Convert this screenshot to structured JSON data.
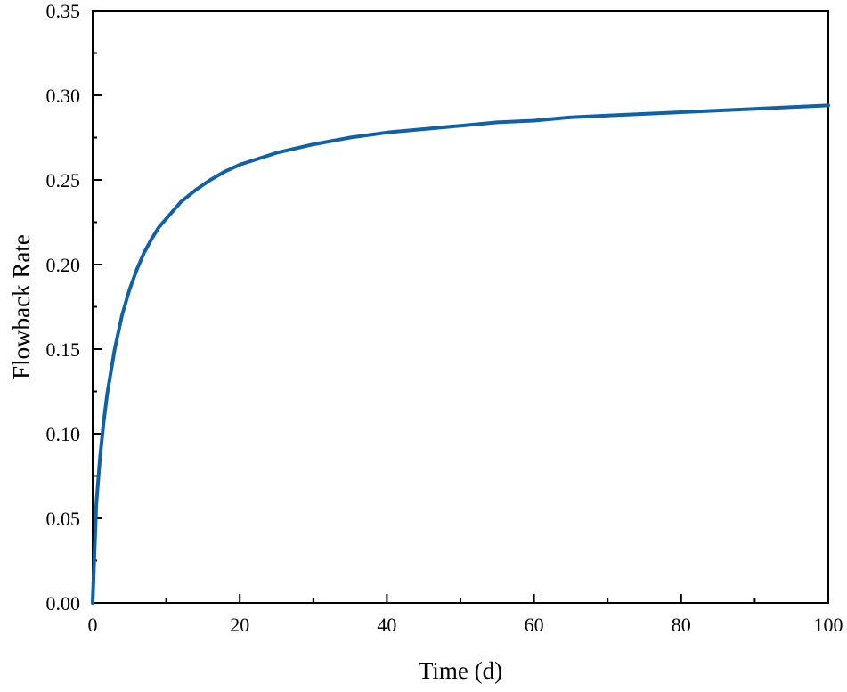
{
  "chart_data": {
    "type": "line",
    "title": "",
    "xlabel": "Time (d)",
    "ylabel": "Flowback Rate",
    "xlim": [
      0,
      100
    ],
    "ylim": [
      0,
      0.35
    ],
    "xticks": [
      0,
      20,
      40,
      60,
      80,
      100
    ],
    "xtick_labels": [
      "0",
      "20",
      "40",
      "60",
      "80",
      "100"
    ],
    "yticks": [
      0,
      0.05,
      0.1,
      0.15,
      0.2,
      0.25,
      0.3,
      0.35
    ],
    "ytick_labels": [
      "0.00",
      "0.05",
      "0.10",
      "0.15",
      "0.20",
      "0.25",
      "0.30",
      "0.35"
    ],
    "grid": false,
    "legend": "none",
    "line_color": "#0f62a8",
    "series": [
      {
        "x": [
          0,
          0.5,
          1,
          1.5,
          2,
          3,
          4,
          5,
          6,
          7,
          8,
          9,
          10,
          12,
          14,
          16,
          18,
          20,
          25,
          30,
          35,
          40,
          45,
          50,
          55,
          60,
          65,
          70,
          75,
          80,
          85,
          90,
          95,
          100
        ],
        "values": [
          0,
          0.058,
          0.086,
          0.107,
          0.124,
          0.15,
          0.17,
          0.185,
          0.197,
          0.207,
          0.215,
          0.222,
          0.227,
          0.237,
          0.244,
          0.25,
          0.255,
          0.259,
          0.266,
          0.271,
          0.275,
          0.278,
          0.28,
          0.282,
          0.284,
          0.285,
          0.287,
          0.288,
          0.289,
          0.29,
          0.291,
          0.292,
          0.293,
          0.294
        ]
      }
    ]
  }
}
